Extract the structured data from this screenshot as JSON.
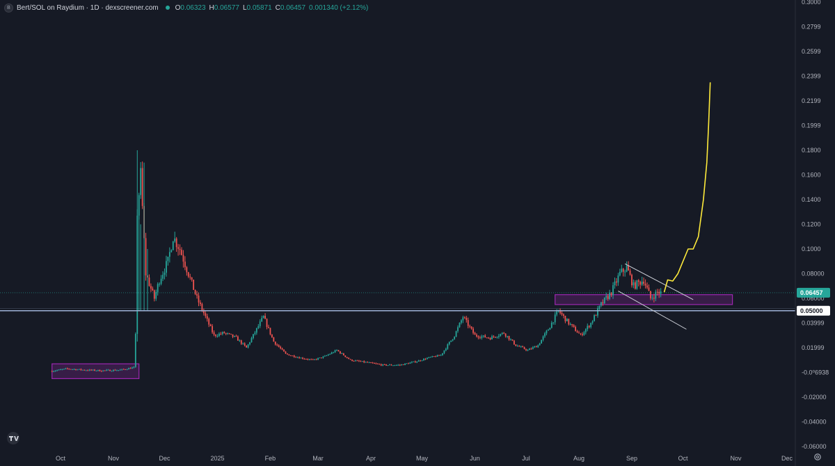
{
  "header": {
    "symbol_icon": "B",
    "title": "Bert/SOL on Raydium · 1D · dexscreener.com",
    "ohlc": [
      {
        "k": "O",
        "v": "0.06323"
      },
      {
        "k": "H",
        "v": "0.06577"
      },
      {
        "k": "L",
        "v": "0.05871"
      },
      {
        "k": "C",
        "v": "0.06457"
      },
      {
        "k": "",
        "v": "0.001340 (+2.12%)"
      }
    ]
  },
  "chart_data": {
    "type": "candlestick",
    "ylim": [
      -0.06,
      0.3
    ],
    "y_ticks": [
      "0.3000",
      "0.2799",
      "0.2599",
      "0.2399",
      "0.2199",
      "0.1999",
      "0.1800",
      "0.1600",
      "0.1400",
      "0.1200",
      "0.1000",
      "0.08000",
      "0.06000",
      "0.03999",
      "0.01999",
      "-0.0⁰6938",
      "-0.02000",
      "-0.04000",
      "-0.06000"
    ],
    "y_tick_values": [
      0.3,
      0.2799,
      0.2599,
      0.2399,
      0.2199,
      0.1999,
      0.18,
      0.16,
      0.14,
      0.12,
      0.1,
      0.08,
      0.06,
      0.03999,
      0.01999,
      0.0,
      -0.02,
      -0.04,
      -0.06
    ],
    "x_ticks": [
      {
        "label": "Oct",
        "date": "2024-10-01"
      },
      {
        "label": "Nov",
        "date": "2024-11-01"
      },
      {
        "label": "Dec",
        "date": "2024-12-01"
      },
      {
        "label": "2025",
        "date": "2025-01-01"
      },
      {
        "label": "Feb",
        "date": "2025-02-01"
      },
      {
        "label": "Mar",
        "date": "2025-03-01"
      },
      {
        "label": "Apr",
        "date": "2025-04-01"
      },
      {
        "label": "May",
        "date": "2025-05-01"
      },
      {
        "label": "Jun",
        "date": "2025-06-01"
      },
      {
        "label": "Jul",
        "date": "2025-07-01"
      },
      {
        "label": "Aug",
        "date": "2025-08-01"
      },
      {
        "label": "Sep",
        "date": "2025-09-01"
      },
      {
        "label": "Oct",
        "date": "2025-10-01"
      },
      {
        "label": "Nov",
        "date": "2025-11-01"
      },
      {
        "label": "Dec",
        "date": "2025-12-01"
      }
    ],
    "close_path": [
      [
        "2024-09-25",
        0.001
      ],
      [
        "2024-10-05",
        0.003
      ],
      [
        "2024-10-15",
        0.002
      ],
      [
        "2024-10-25",
        0.0015
      ],
      [
        "2024-11-05",
        0.002
      ],
      [
        "2024-11-13",
        0.004
      ],
      [
        "2024-11-14",
        0.03
      ],
      [
        "2024-11-15",
        0.13
      ],
      [
        "2024-11-17",
        0.16
      ],
      [
        "2024-11-20",
        0.08
      ],
      [
        "2024-11-25",
        0.06
      ],
      [
        "2024-11-28",
        0.075
      ],
      [
        "2024-12-03",
        0.09
      ],
      [
        "2024-12-06",
        0.11
      ],
      [
        "2024-12-10",
        0.1
      ],
      [
        "2024-12-15",
        0.08
      ],
      [
        "2024-12-20",
        0.06
      ],
      [
        "2024-12-25",
        0.045
      ],
      [
        "2024-12-30",
        0.03
      ],
      [
        "2025-01-05",
        0.032
      ],
      [
        "2025-01-12",
        0.028
      ],
      [
        "2025-01-18",
        0.02
      ],
      [
        "2025-01-24",
        0.035
      ],
      [
        "2025-01-28",
        0.045
      ],
      [
        "2025-02-03",
        0.025
      ],
      [
        "2025-02-10",
        0.015
      ],
      [
        "2025-02-18",
        0.012
      ],
      [
        "2025-02-26",
        0.01
      ],
      [
        "2025-03-05",
        0.013
      ],
      [
        "2025-03-12",
        0.018
      ],
      [
        "2025-03-20",
        0.01
      ],
      [
        "2025-03-30",
        0.008
      ],
      [
        "2025-04-08",
        0.006
      ],
      [
        "2025-04-18",
        0.006
      ],
      [
        "2025-04-28",
        0.009
      ],
      [
        "2025-05-05",
        0.012
      ],
      [
        "2025-05-12",
        0.014
      ],
      [
        "2025-05-20",
        0.03
      ],
      [
        "2025-05-25",
        0.045
      ],
      [
        "2025-06-01",
        0.03
      ],
      [
        "2025-06-10",
        0.028
      ],
      [
        "2025-06-18",
        0.032
      ],
      [
        "2025-06-25",
        0.022
      ],
      [
        "2025-07-02",
        0.018
      ],
      [
        "2025-07-08",
        0.022
      ],
      [
        "2025-07-14",
        0.035
      ],
      [
        "2025-07-20",
        0.05
      ],
      [
        "2025-07-26",
        0.04
      ],
      [
        "2025-08-02",
        0.03
      ],
      [
        "2025-08-08",
        0.04
      ],
      [
        "2025-08-14",
        0.055
      ],
      [
        "2025-08-20",
        0.065
      ],
      [
        "2025-08-25",
        0.08
      ],
      [
        "2025-08-29",
        0.085
      ],
      [
        "2025-09-02",
        0.07
      ],
      [
        "2025-09-08",
        0.075
      ],
      [
        "2025-09-12",
        0.06
      ],
      [
        "2025-09-16",
        0.065
      ],
      [
        "2025-09-18",
        0.06457
      ]
    ],
    "current_price_label": "0.06457",
    "current_price": 0.06457,
    "support_line": {
      "label": "0.05000",
      "value": 0.05
    },
    "support_zones": [
      {
        "x0": "2024-09-26",
        "x1": "2024-11-16",
        "y0": -0.005,
        "y1": 0.007
      },
      {
        "x0": "2025-07-18",
        "x1": "2025-10-30",
        "y0": 0.055,
        "y1": 0.063
      }
    ],
    "channel": {
      "upper": [
        [
          "2025-08-28",
          0.088
        ],
        [
          "2025-10-07",
          0.059
        ]
      ],
      "lower": [
        [
          "2025-08-24",
          0.066
        ],
        [
          "2025-10-03",
          0.035
        ]
      ]
    },
    "projection": [
      [
        "2025-09-20",
        0.065
      ],
      [
        "2025-09-22",
        0.075
      ],
      [
        "2025-09-25",
        0.074
      ],
      [
        "2025-09-28",
        0.08
      ],
      [
        "2025-10-01",
        0.09
      ],
      [
        "2025-10-04",
        0.1
      ],
      [
        "2025-10-07",
        0.1
      ],
      [
        "2025-10-10",
        0.11
      ],
      [
        "2025-10-13",
        0.14
      ],
      [
        "2025-10-15",
        0.17
      ],
      [
        "2025-10-16",
        0.2
      ],
      [
        "2025-10-17",
        0.235
      ]
    ],
    "colors": {
      "up": "#26a69a",
      "down": "#ef5350",
      "projection": "#ffeb3b",
      "zone": "#9c27b0",
      "support": "#9fb3d8",
      "background": "#161a25"
    }
  }
}
